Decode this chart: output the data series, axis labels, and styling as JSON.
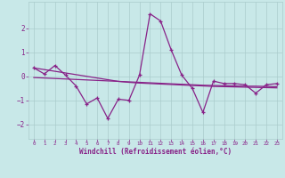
{
  "x": [
    0,
    1,
    2,
    3,
    4,
    5,
    6,
    7,
    8,
    9,
    10,
    11,
    12,
    13,
    14,
    15,
    16,
    17,
    18,
    19,
    20,
    21,
    22,
    23
  ],
  "y_main": [
    0.35,
    0.1,
    0.45,
    0.05,
    -0.4,
    -1.15,
    -0.9,
    -1.75,
    -0.95,
    -1.0,
    0.05,
    2.6,
    2.3,
    1.1,
    0.05,
    -0.5,
    -1.5,
    -0.2,
    -0.3,
    -0.3,
    -0.35,
    -0.7,
    -0.35,
    -0.3
  ],
  "y_trend1": [
    0.35,
    0.28,
    0.21,
    0.14,
    0.07,
    0.0,
    -0.07,
    -0.14,
    -0.21,
    -0.25,
    -0.28,
    -0.3,
    -0.32,
    -0.34,
    -0.36,
    -0.38,
    -0.4,
    -0.42,
    -0.43,
    -0.44,
    -0.45,
    -0.46,
    -0.47,
    -0.48
  ],
  "y_trend2": [
    -0.05,
    -0.07,
    -0.09,
    -0.11,
    -0.13,
    -0.15,
    -0.17,
    -0.19,
    -0.21,
    -0.23,
    -0.25,
    -0.27,
    -0.29,
    -0.31,
    -0.33,
    -0.35,
    -0.37,
    -0.38,
    -0.39,
    -0.4,
    -0.41,
    -0.41,
    -0.42,
    -0.43
  ],
  "line_color": "#882288",
  "bg_color": "#c8e8e8",
  "grid_color": "#aacccc",
  "xlabel": "Windchill (Refroidissement éolien,°C)",
  "ylim": [
    -2.6,
    3.1
  ],
  "xlim": [
    -0.5,
    23.5
  ],
  "yticks": [
    -2,
    -1,
    0,
    1,
    2
  ],
  "xticks": [
    0,
    1,
    2,
    3,
    4,
    5,
    6,
    7,
    8,
    9,
    10,
    11,
    12,
    13,
    14,
    15,
    16,
    17,
    18,
    19,
    20,
    21,
    22,
    23
  ]
}
